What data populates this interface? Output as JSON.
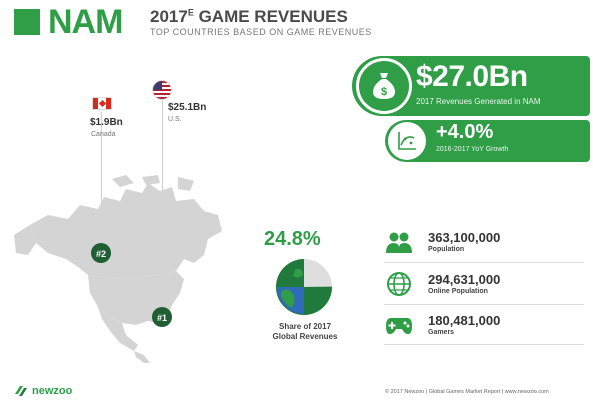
{
  "header": {
    "region": "NAM",
    "title_year": "2017",
    "title_sup": "E",
    "title_rest": " GAME REVENUES",
    "subtitle": "TOP COUNTRIES BASED ON GAME REVENUES"
  },
  "countries": {
    "canada": {
      "value": "$1.9Bn",
      "name": "Canada",
      "rank": "#2"
    },
    "us": {
      "value": "$25.1Bn",
      "name": "U.S.",
      "rank": "#1"
    }
  },
  "revenue": {
    "value": "$27.0Bn",
    "label": "2017 Revenues Generated in NAM"
  },
  "growth": {
    "value": "+4.0%",
    "label": "2016-2017 YoY Growth"
  },
  "share": {
    "value": "24.8%",
    "label_line1": "Share of 2017",
    "label_line2": "Global Revenues",
    "fraction": 0.248
  },
  "stats": [
    {
      "value": "363,100,000",
      "label": "Population",
      "icon": "people-icon"
    },
    {
      "value": "294,631,000",
      "label": "Online Population",
      "icon": "globe-icon"
    },
    {
      "value": "180,481,000",
      "label": "Gamers",
      "icon": "gamepad-icon"
    }
  ],
  "footer": {
    "brand": "newzoo",
    "credit": "© 2017 Newzoo | Global Games Market Report | www.newzoo.com"
  },
  "colors": {
    "accent": "#2f9e47",
    "map": "#d4d4d4"
  }
}
